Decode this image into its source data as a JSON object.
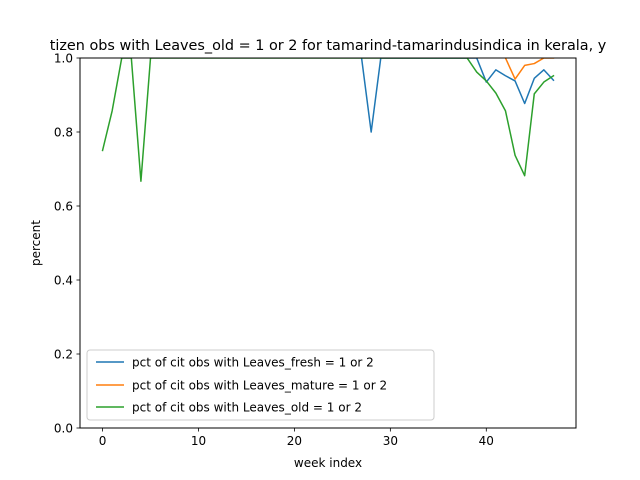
{
  "chart_data": {
    "type": "line",
    "title": "tizen obs with Leaves_old = 1 or 2 for tamarind-tamarindusindica in kerala, y",
    "xlabel": "week index",
    "ylabel": "percent",
    "xlim": [
      -2.35,
      49.35
    ],
    "ylim": [
      0.0,
      1.0
    ],
    "x_ticks": [
      0,
      10,
      20,
      30,
      40
    ],
    "y_ticks": [
      0.0,
      0.2,
      0.4,
      0.6,
      0.8,
      1.0
    ],
    "x_tick_labels": [
      "0",
      "10",
      "20",
      "30",
      "40"
    ],
    "y_tick_labels": [
      "0.0",
      "0.2",
      "0.4",
      "0.6",
      "0.8",
      "1.0"
    ],
    "grid": false,
    "legend_position": "lower-left",
    "series": [
      {
        "name": "pct of cit obs with Leaves_fresh = 1 or 2",
        "color": "#1f77b4",
        "points": [
          [
            27,
            1.0
          ],
          [
            28,
            0.8
          ],
          [
            29,
            1.0
          ],
          [
            30,
            1.0
          ],
          [
            31,
            1.0
          ],
          [
            32,
            1.0
          ],
          [
            33,
            1.0
          ],
          [
            34,
            1.0
          ],
          [
            35,
            1.0
          ],
          [
            36,
            1.0
          ],
          [
            37,
            1.0
          ],
          [
            38,
            1.0
          ],
          [
            39,
            1.0
          ],
          [
            40,
            0.935
          ],
          [
            41,
            0.968
          ],
          [
            42,
            0.952
          ],
          [
            43,
            0.938
          ],
          [
            44,
            0.877
          ],
          [
            45,
            0.945
          ],
          [
            46,
            0.968
          ],
          [
            47,
            0.94
          ]
        ]
      },
      {
        "name": "pct of cit obs with Leaves_mature = 1 or 2",
        "color": "#ff7f0e",
        "points": [
          [
            42,
            1.0
          ],
          [
            43,
            0.943
          ],
          [
            44,
            0.98
          ],
          [
            45,
            0.985
          ],
          [
            46,
            1.0
          ],
          [
            47,
            1.0
          ]
        ]
      },
      {
        "name": "pct of cit obs with Leaves_old = 1 or 2",
        "color": "#2ca02c",
        "points": [
          [
            0,
            0.75
          ],
          [
            1,
            0.857
          ],
          [
            2,
            1.0
          ],
          [
            3,
            1.0
          ],
          [
            4,
            0.667
          ],
          [
            5,
            1.0
          ],
          [
            6,
            1.0
          ],
          [
            7,
            1.0
          ],
          [
            8,
            1.0
          ],
          [
            9,
            1.0
          ],
          [
            10,
            1.0
          ],
          [
            11,
            1.0
          ],
          [
            12,
            1.0
          ],
          [
            13,
            1.0
          ],
          [
            14,
            1.0
          ],
          [
            15,
            1.0
          ],
          [
            16,
            1.0
          ],
          [
            17,
            1.0
          ],
          [
            18,
            1.0
          ],
          [
            19,
            1.0
          ],
          [
            20,
            1.0
          ],
          [
            21,
            1.0
          ],
          [
            22,
            1.0
          ],
          [
            23,
            1.0
          ],
          [
            24,
            1.0
          ],
          [
            25,
            1.0
          ],
          [
            26,
            1.0
          ],
          [
            27,
            1.0
          ],
          [
            28,
            1.0
          ],
          [
            29,
            1.0
          ],
          [
            30,
            1.0
          ],
          [
            31,
            1.0
          ],
          [
            32,
            1.0
          ],
          [
            33,
            1.0
          ],
          [
            34,
            1.0
          ],
          [
            35,
            1.0
          ],
          [
            36,
            1.0
          ],
          [
            37,
            1.0
          ],
          [
            38,
            1.0
          ],
          [
            39,
            0.962
          ],
          [
            40,
            0.938
          ],
          [
            41,
            0.905
          ],
          [
            42,
            0.857
          ],
          [
            43,
            0.737
          ],
          [
            44,
            0.682
          ],
          [
            45,
            0.903
          ],
          [
            46,
            0.935
          ],
          [
            47,
            0.952
          ]
        ]
      }
    ]
  }
}
